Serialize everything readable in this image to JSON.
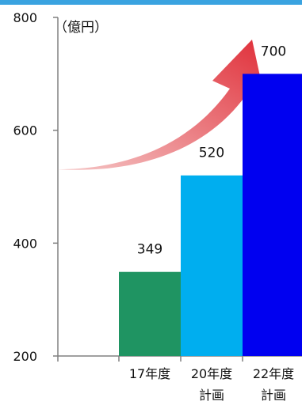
{
  "header_bar_color": "#3aa3e0",
  "chart_data": {
    "type": "bar",
    "categories": [
      [
        "17年度"
      ],
      [
        "20年度",
        "計画"
      ],
      [
        "22年度",
        "計画"
      ]
    ],
    "values": [
      349,
      520,
      700
    ],
    "data_labels": [
      "349",
      "520",
      "700"
    ],
    "bar_colors": [
      "#1f9462",
      "#00aeef",
      "#0000f0"
    ],
    "unit_label": "（億円）",
    "ylim": [
      200,
      800
    ],
    "yticks": [
      200,
      400,
      600,
      800
    ],
    "ytick_labels": [
      "200",
      "400",
      "600",
      "800"
    ],
    "grid": false,
    "legend": "none",
    "trend_arrow": {
      "color_start": "#f5c7c7",
      "color_end": "#e0303a",
      "direction": "up-right"
    }
  }
}
